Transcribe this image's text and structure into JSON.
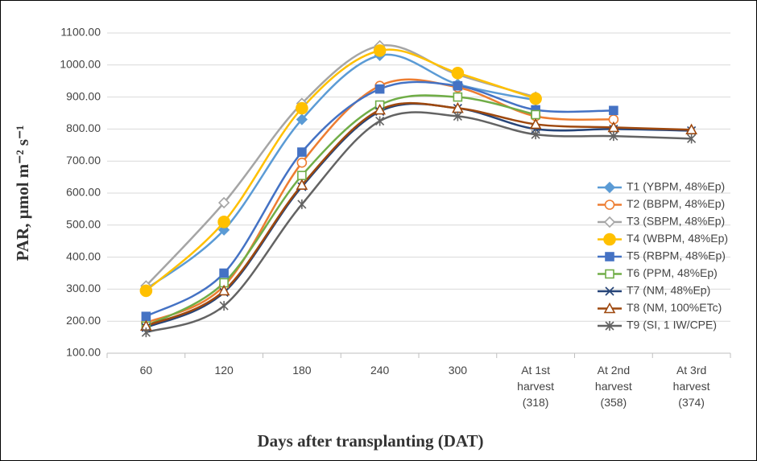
{
  "chart_data": {
    "type": "line",
    "x_label": "Days after transplanting (DAT)",
    "y_label": "PAR, µmol m⁻² s⁻¹",
    "categories": [
      "60",
      "120",
      "180",
      "240",
      "300",
      "At 1st harvest (318)",
      "At 2nd harvest (358)",
      "At 3rd harvest (374)"
    ],
    "ylim": [
      100,
      1100
    ],
    "yticks": [
      {
        "value": 100,
        "label": "100.00"
      },
      {
        "value": 200,
        "label": "200.00"
      },
      {
        "value": 300,
        "label": "300.00"
      },
      {
        "value": 400,
        "label": "400.00"
      },
      {
        "value": 500,
        "label": "500.00"
      },
      {
        "value": 600,
        "label": "600.00"
      },
      {
        "value": 700,
        "label": "700.00"
      },
      {
        "value": 800,
        "label": "800.00"
      },
      {
        "value": 900,
        "label": "900.00"
      },
      {
        "value": 1000,
        "label": "1000.00"
      },
      {
        "value": 1100,
        "label": "1100.00"
      }
    ],
    "grid": true,
    "smooth": true,
    "legend": "right",
    "series": [
      {
        "name": "T1 (YBPM, 48%Ep)",
        "color": "#5b9bd5",
        "marker": "diamond",
        "filled": true,
        "values": [
          300,
          485,
          830,
          1030,
          940,
          890,
          null,
          null
        ]
      },
      {
        "name": "T2 (BBPM, 48%Ep)",
        "color": "#ed7d31",
        "marker": "circle",
        "filled": false,
        "values": [
          195,
          310,
          695,
          935,
          930,
          840,
          830,
          null
        ]
      },
      {
        "name": "T3 (SBPM, 48%Ep)",
        "color": "#a5a5a5",
        "marker": "diamond",
        "filled": false,
        "values": [
          310,
          570,
          880,
          1060,
          970,
          900,
          null,
          null
        ]
      },
      {
        "name": "T4 (WBPM, 48%Ep)",
        "color": "#ffc000",
        "marker": "circle",
        "filled": true,
        "values": [
          295,
          510,
          865,
          1045,
          975,
          895,
          null,
          null
        ]
      },
      {
        "name": "T5 (RBPM, 48%Ep)",
        "color": "#4472c4",
        "marker": "square",
        "filled": true,
        "values": [
          215,
          350,
          728,
          925,
          935,
          860,
          858,
          null
        ]
      },
      {
        "name": "T6 (PPM, 48%Ep)",
        "color": "#70ad47",
        "marker": "square",
        "filled": false,
        "values": [
          185,
          320,
          655,
          875,
          900,
          845,
          null,
          null
        ]
      },
      {
        "name": "T7 (NM, 48%Ep)",
        "color": "#264478",
        "marker": "x",
        "filled": false,
        "values": [
          180,
          290,
          620,
          855,
          865,
          800,
          800,
          795
        ]
      },
      {
        "name": "T8 (NM, 100%ETc)",
        "color": "#9e480e",
        "marker": "triangle",
        "filled": false,
        "values": [
          185,
          295,
          625,
          860,
          865,
          815,
          805,
          798
        ]
      },
      {
        "name": "T9 (SI, 1 IW/CPE)",
        "color": "#636363",
        "marker": "star",
        "filled": false,
        "values": [
          165,
          248,
          565,
          825,
          840,
          783,
          778,
          770
        ]
      }
    ]
  }
}
